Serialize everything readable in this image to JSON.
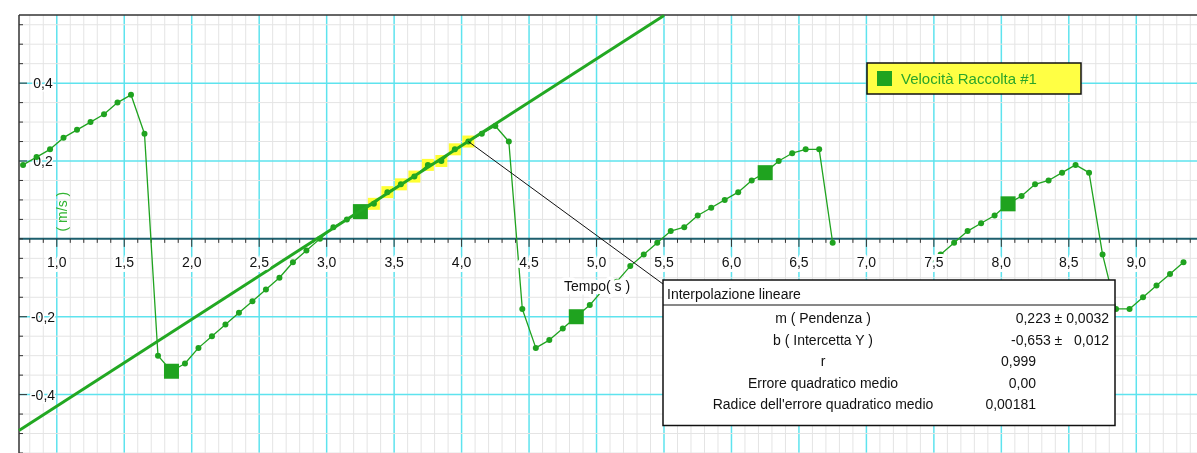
{
  "chart_data": {
    "type": "line",
    "xlabel": "Tempo( s )",
    "ylabel": "( m/s )",
    "xlim": [
      0.72,
      9.45
    ],
    "ylim": [
      -0.55,
      0.575
    ],
    "xticks": [
      {
        "value": 0.8,
        "label": null
      },
      {
        "value": 0.9,
        "label": null
      },
      {
        "value": 1,
        "label": "1,0"
      },
      {
        "value": 1.1,
        "label": null
      },
      {
        "value": 1.2,
        "label": null
      },
      {
        "value": 1.3,
        "label": null
      },
      {
        "value": 1.4,
        "label": null
      },
      {
        "value": 1.5,
        "label": "1,5"
      },
      {
        "value": 1.6,
        "label": null
      },
      {
        "value": 1.7,
        "label": null
      },
      {
        "value": 1.8,
        "label": null
      },
      {
        "value": 1.9,
        "label": null
      },
      {
        "value": 2,
        "label": "2,0"
      },
      {
        "value": 2.1,
        "label": null
      },
      {
        "value": 2.2,
        "label": null
      },
      {
        "value": 2.3,
        "label": null
      },
      {
        "value": 2.4,
        "label": null
      },
      {
        "value": 2.5,
        "label": "2,5"
      },
      {
        "value": 2.6,
        "label": null
      },
      {
        "value": 2.7,
        "label": null
      },
      {
        "value": 2.8,
        "label": null
      },
      {
        "value": 2.9,
        "label": null
      },
      {
        "value": 3,
        "label": "3,0"
      },
      {
        "value": 3.1,
        "label": null
      },
      {
        "value": 3.2,
        "label": null
      },
      {
        "value": 3.3,
        "label": null
      },
      {
        "value": 3.4,
        "label": null
      },
      {
        "value": 3.5,
        "label": "3,5"
      },
      {
        "value": 3.6,
        "label": null
      },
      {
        "value": 3.7,
        "label": null
      },
      {
        "value": 3.8,
        "label": null
      },
      {
        "value": 3.9,
        "label": null
      },
      {
        "value": 4,
        "label": "4,0"
      },
      {
        "value": 4.1,
        "label": null
      },
      {
        "value": 4.2,
        "label": null
      },
      {
        "value": 4.3,
        "label": null
      },
      {
        "value": 4.4,
        "label": null
      },
      {
        "value": 4.5,
        "label": "4,5"
      },
      {
        "value": 4.6,
        "label": null
      },
      {
        "value": 4.7,
        "label": null
      },
      {
        "value": 4.8,
        "label": null
      },
      {
        "value": 4.9,
        "label": null
      },
      {
        "value": 5,
        "label": "5,0"
      },
      {
        "value": 5.1,
        "label": null
      },
      {
        "value": 5.2,
        "label": null
      },
      {
        "value": 5.3,
        "label": null
      },
      {
        "value": 5.4,
        "label": null
      },
      {
        "value": 5.5,
        "label": "5,5"
      },
      {
        "value": 5.6,
        "label": null
      },
      {
        "value": 5.7,
        "label": null
      },
      {
        "value": 5.8,
        "label": null
      },
      {
        "value": 5.9,
        "label": null
      },
      {
        "value": 6,
        "label": "6,0"
      },
      {
        "value": 6.1,
        "label": null
      },
      {
        "value": 6.2,
        "label": null
      },
      {
        "value": 6.3,
        "label": null
      },
      {
        "value": 6.4,
        "label": null
      },
      {
        "value": 6.5,
        "label": "6,5"
      },
      {
        "value": 6.6,
        "label": null
      },
      {
        "value": 6.7,
        "label": null
      },
      {
        "value": 6.8,
        "label": null
      },
      {
        "value": 6.9,
        "label": null
      },
      {
        "value": 7,
        "label": "7,0"
      },
      {
        "value": 7.1,
        "label": null
      },
      {
        "value": 7.2,
        "label": null
      },
      {
        "value": 7.3,
        "label": null
      },
      {
        "value": 7.4,
        "label": null
      },
      {
        "value": 7.5,
        "label": "7,5"
      },
      {
        "value": 7.6,
        "label": null
      },
      {
        "value": 7.7,
        "label": null
      },
      {
        "value": 7.8,
        "label": null
      },
      {
        "value": 7.9,
        "label": null
      },
      {
        "value": 8,
        "label": "8,0"
      },
      {
        "value": 8.1,
        "label": null
      },
      {
        "value": 8.2,
        "label": null
      },
      {
        "value": 8.3,
        "label": null
      },
      {
        "value": 8.4,
        "label": null
      },
      {
        "value": 8.5,
        "label": "8,5"
      },
      {
        "value": 8.6,
        "label": null
      },
      {
        "value": 8.7,
        "label": null
      },
      {
        "value": 8.8,
        "label": null
      },
      {
        "value": 8.9,
        "label": null
      },
      {
        "value": 9,
        "label": "9,0"
      },
      {
        "value": 9.1,
        "label": null
      },
      {
        "value": 9.2,
        "label": null
      },
      {
        "value": 9.3,
        "label": null
      },
      {
        "value": 9.4,
        "label": null
      }
    ],
    "yticks": [
      {
        "value": -0.55,
        "label": null
      },
      {
        "value": -0.5,
        "label": null
      },
      {
        "value": -0.45,
        "label": null
      },
      {
        "value": -0.4,
        "label": "-0,4"
      },
      {
        "value": -0.35,
        "label": null
      },
      {
        "value": -0.3,
        "label": null
      },
      {
        "value": -0.25,
        "label": null
      },
      {
        "value": -0.2,
        "label": "-0,2"
      },
      {
        "value": -0.15,
        "label": null
      },
      {
        "value": -0.1,
        "label": null
      },
      {
        "value": -0.05,
        "label": null
      },
      {
        "value": 0,
        "label": null
      },
      {
        "value": 0.05,
        "label": null
      },
      {
        "value": 0.1,
        "label": null
      },
      {
        "value": 0.15,
        "label": null
      },
      {
        "value": 0.2,
        "label": "0,2"
      },
      {
        "value": 0.25,
        "label": null
      },
      {
        "value": 0.3,
        "label": null
      },
      {
        "value": 0.35,
        "label": null
      },
      {
        "value": 0.4,
        "label": "0,4"
      },
      {
        "value": 0.45,
        "label": null
      },
      {
        "value": 0.5,
        "label": null
      },
      {
        "value": 0.55,
        "label": null
      }
    ],
    "grid": true,
    "legend": "top right",
    "series": [
      {
        "name": "Velocità Raccolta #1",
        "color": "#1fa31f",
        "marker": "circle",
        "x": [
          0.75,
          0.85,
          0.95,
          1.05,
          1.15,
          1.25,
          1.35,
          1.45,
          1.55,
          1.65,
          1.75,
          1.85,
          1.95,
          2.05,
          2.15,
          2.25,
          2.35,
          2.45,
          2.55,
          2.65,
          2.75,
          2.85,
          2.95,
          3.05,
          3.15,
          3.25,
          3.35,
          3.45,
          3.55,
          3.65,
          3.75,
          3.85,
          3.95,
          4.05,
          4.15,
          4.25,
          4.35,
          4.45,
          4.55,
          4.65,
          4.75,
          4.85,
          4.95,
          5.05,
          5.15,
          5.25,
          5.35,
          5.45,
          5.55,
          5.65,
          5.75,
          5.85,
          5.95,
          6.05,
          6.15,
          6.25,
          6.35,
          6.45,
          6.55,
          6.65,
          6.75,
          6.85,
          6.95,
          7.05,
          7.15,
          7.25,
          7.35,
          7.45,
          7.55,
          7.65,
          7.75,
          7.85,
          7.95,
          8.05,
          8.15,
          8.25,
          8.35,
          8.45,
          8.55,
          8.65,
          8.75,
          8.85,
          8.95,
          9.05,
          9.15,
          9.25,
          9.35
        ],
        "values": [
          0.19,
          0.21,
          0.23,
          0.26,
          0.28,
          0.3,
          0.32,
          0.35,
          0.37,
          0.27,
          -0.3,
          -0.34,
          -0.32,
          -0.28,
          -0.25,
          -0.22,
          -0.19,
          -0.16,
          -0.13,
          -0.1,
          -0.06,
          -0.03,
          0,
          0.03,
          0.05,
          0.07,
          0.09,
          0.12,
          0.14,
          0.16,
          0.19,
          0.2,
          0.23,
          0.25,
          0.27,
          0.29,
          0.25,
          -0.18,
          -0.28,
          -0.26,
          -0.23,
          -0.2,
          -0.17,
          -0.13,
          -0.11,
          -0.07,
          -0.04,
          -0.01,
          0.02,
          0.03,
          0.06,
          0.08,
          0.1,
          0.12,
          0.15,
          0.17,
          0.2,
          0.22,
          0.23,
          0.23,
          -0.01,
          null,
          null,
          null,
          null,
          null,
          null,
          -0.07,
          -0.04,
          -0.01,
          0.02,
          0.04,
          0.06,
          0.09,
          0.11,
          0.14,
          0.15,
          0.17,
          0.19,
          0.17,
          -0.04,
          -0.18,
          -0.18,
          -0.15,
          -0.12,
          -0.09,
          -0.06
        ]
      },
      {
        "type": "scatter",
        "color": "#1fa31f",
        "marker": "square",
        "x": [
          1.85,
          3.25,
          4.85,
          6.25,
          8.05
        ],
        "values": [
          -0.34,
          0.07,
          -0.2,
          0.17,
          0.09
        ]
      },
      {
        "type": "scatter",
        "color": "#ffff33",
        "marker": "square",
        "x": [
          3.35,
          3.45,
          3.55,
          3.65,
          3.75,
          3.85,
          3.95,
          4.05
        ],
        "values": [
          0.09,
          0.12,
          0.14,
          0.16,
          0.19,
          0.2,
          0.23,
          0.25
        ]
      },
      {
        "color": "#22a822",
        "marker": "none",
        "x": [
          0.72,
          5.5
        ],
        "values": [
          -0.492,
          0.574
        ]
      }
    ],
    "annotations": [
      {
        "text": "Interpolazione lineare",
        "x": 4.05,
        "y": 0.25
      },
      "m ( Pendenza )",
      "0,223 ± 0,0032",
      "b ( Intercetta Y )",
      "-0,653 ±   0,012",
      "r",
      "0,999",
      "Errore quadratico medio",
      "0,00",
      "Radice dell'errore quadratico medio",
      "0,00181"
    ]
  }
}
